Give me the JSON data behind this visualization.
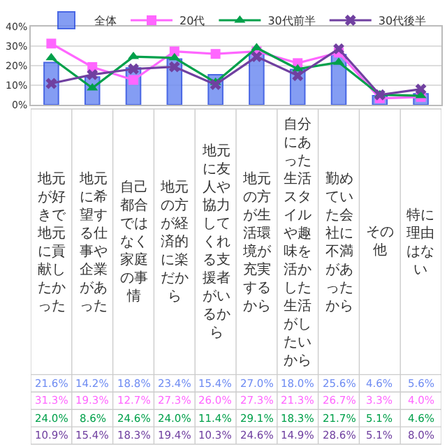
{
  "chart_data": {
    "type": "bar",
    "categories": [
      "地元が好きで地元に貢献したかった",
      "地元に希望する仕事や企業があった",
      "自己都合ではなく家庭の事情",
      "地元の方が経済的に楽だから",
      "地元に友人や協力してくれる支援者がいるから",
      "地元の方が生活環境が充実するから",
      "自分にあった生活スタイルや趣味を活かした生活がしたいから",
      "勤めていた会社に不満があったから",
      "その他",
      "特に理由はない"
    ],
    "series": [
      {
        "name": "全体",
        "color": "#6f8cf2",
        "values": [
          21.6,
          14.2,
          18.8,
          23.4,
          15.4,
          27.0,
          18.0,
          25.6,
          4.6,
          5.6
        ],
        "value_labels": [
          "21.6%",
          "14.2%",
          "18.8%",
          "23.4%",
          "15.4%",
          "27.0%",
          "18.0%",
          "25.6%",
          "4.6%",
          "5.6%"
        ]
      },
      {
        "name": "20代",
        "type": "line",
        "color": "#ff66ff",
        "marker": "square",
        "values": [
          31.3,
          19.3,
          12.7,
          27.3,
          26.0,
          27.3,
          21.3,
          26.7,
          3.3,
          4.0
        ],
        "value_labels": [
          "31.3%",
          "19.3%",
          "12.7%",
          "27.3%",
          "26.0%",
          "27.3%",
          "21.3%",
          "26.7%",
          "3.3%",
          "4.0%"
        ]
      },
      {
        "name": "30代前半",
        "type": "line",
        "color": "#00a04a",
        "marker": "triangle",
        "values": [
          24.0,
          8.6,
          24.6,
          24.0,
          11.4,
          29.1,
          18.3,
          21.7,
          5.1,
          4.6
        ],
        "value_labels": [
          "24.0%",
          "8.6%",
          "24.6%",
          "24.0%",
          "11.4%",
          "29.1%",
          "18.3%",
          "21.7%",
          "5.1%",
          "4.6%"
        ]
      },
      {
        "name": "30代後半",
        "type": "line",
        "color": "#7040a0",
        "marker": "cross",
        "values": [
          10.9,
          15.4,
          18.3,
          19.4,
          10.3,
          24.6,
          14.9,
          28.6,
          5.1,
          8.0
        ],
        "value_labels": [
          "10.9%",
          "15.4%",
          "18.3%",
          "19.4%",
          "10.3%",
          "24.6%",
          "14.9%",
          "28.6%",
          "5.1%",
          "8.0%"
        ]
      }
    ],
    "ylim": [
      0,
      40
    ],
    "yticks": [
      {
        "value": 0,
        "label": "0%"
      },
      {
        "value": 10,
        "label": "10%"
      },
      {
        "value": 20,
        "label": "20%"
      },
      {
        "value": 30,
        "label": "30%"
      },
      {
        "value": 40,
        "label": "40%"
      }
    ],
    "grid": "y",
    "legend": "top"
  }
}
